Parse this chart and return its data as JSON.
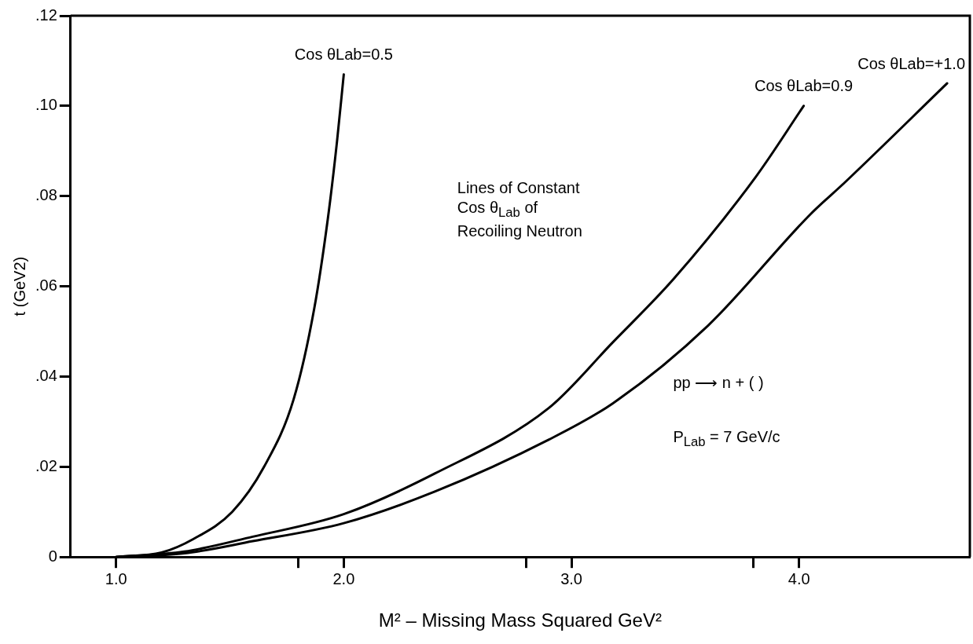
{
  "chart_data": {
    "type": "line",
    "xlabel": "M² – Missing Mass Squared GeV²",
    "ylabel": "t (GeV2)",
    "xlim": [
      0.8,
      4.75
    ],
    "xticks": [
      {
        "value": 1,
        "label": "1.0"
      },
      {
        "value": 1.8,
        "label": null
      },
      {
        "value": 2,
        "label": "2.0"
      },
      {
        "value": 2.8,
        "label": null
      },
      {
        "value": 3,
        "label": "3.0"
      },
      {
        "value": 3.8,
        "label": null
      },
      {
        "value": 4,
        "label": "4.0"
      }
    ],
    "ylim": [
      0,
      0.12
    ],
    "yticks": [
      0,
      {
        "value": 0.02,
        "label": ".02"
      },
      {
        "value": 0.04,
        "label": ".04"
      },
      {
        "value": 0.06,
        "label": ".06"
      },
      {
        "value": 0.08,
        "label": ".08"
      },
      {
        "value": 0.1,
        "label": ".10"
      },
      {
        "value": 0.12,
        "label": ".12"
      }
    ],
    "grid": false,
    "legend": false,
    "marker": "none",
    "line_style": "solid",
    "series": [
      {
        "name": "Cos θLab=0.5",
        "color": "#000000",
        "x": [
          1.0,
          1.2,
          1.34,
          1.51,
          1.65,
          1.78,
          1.87,
          1.93,
          1.97,
          2.0
        ],
        "values": [
          0,
          0.001,
          0.004,
          0.01,
          0.02,
          0.035,
          0.055,
          0.075,
          0.092,
          0.107
        ]
      },
      {
        "name": "Cos θLab=0.9",
        "color": "#000000",
        "x": [
          1.0,
          1.3,
          1.6,
          2.0,
          2.4,
          2.9,
          3.18,
          3.45,
          3.81,
          4.02
        ],
        "values": [
          0,
          0.0012,
          0.0045,
          0.0095,
          0.0185,
          0.033,
          0.0475,
          0.0617,
          0.0843,
          0.1
        ]
      },
      {
        "name": "Cos θLab=+1.0",
        "color": "#000000",
        "x": [
          1.0,
          1.3,
          1.6,
          2.0,
          2.4,
          2.9,
          3.18,
          3.6,
          4.05,
          4.2,
          4.65
        ],
        "values": [
          0,
          0.0008,
          0.0035,
          0.0075,
          0.0145,
          0.026,
          0.034,
          0.0513,
          0.076,
          0.083,
          0.105
        ]
      }
    ],
    "annotations": [
      "Lines of Constant\nCos θ$_{Lab}$ of\nRecoiling Neutron",
      "pp ⟶ n + ( )",
      "P$_{Lab}$ = 7 GeV/c"
    ]
  }
}
